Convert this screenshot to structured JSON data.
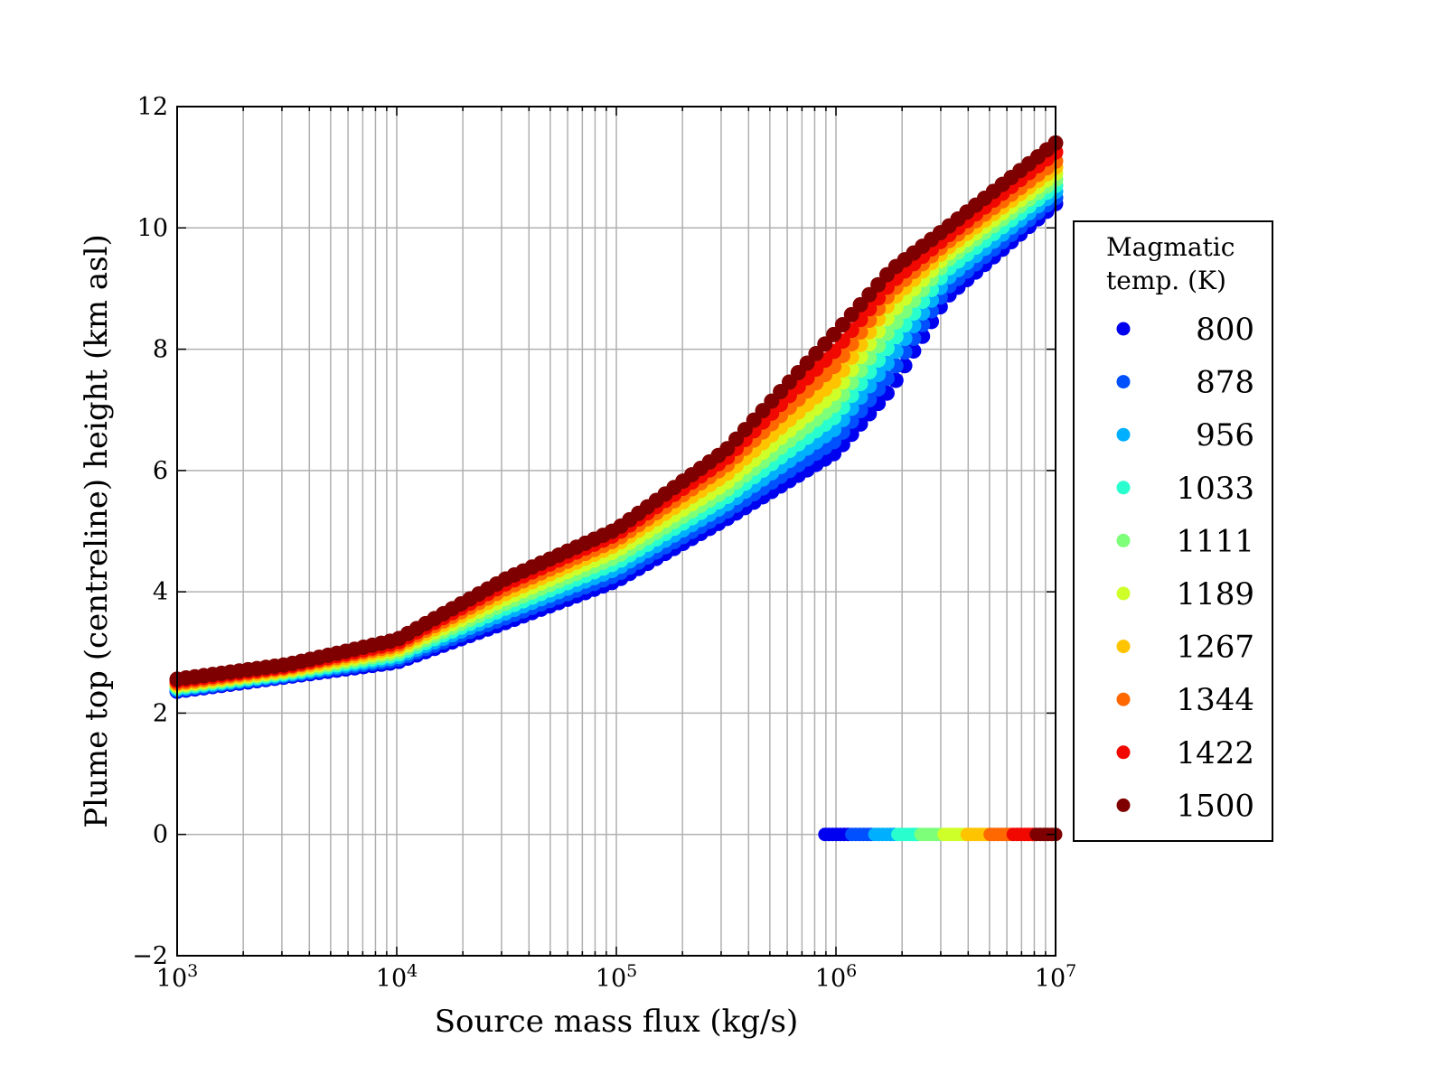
{
  "chart_data": {
    "type": "scatter",
    "title": "",
    "xlabel": "Source mass flux (kg/s)",
    "ylabel": "Plume top (centreline) height (km asl)",
    "xscale": "log",
    "xlim": [
      1000,
      10000000
    ],
    "ylim": [
      -2,
      12
    ],
    "grid": true,
    "x_ticks": [
      {
        "base": "10",
        "exp": "3"
      },
      {
        "base": "10",
        "exp": "4"
      },
      {
        "base": "10",
        "exp": "5"
      },
      {
        "base": "10",
        "exp": "6"
      },
      {
        "base": "10",
        "exp": "7"
      }
    ],
    "y_ticks": [
      "−2",
      "0",
      "2",
      "4",
      "6",
      "8",
      "10",
      "12"
    ],
    "legend": {
      "title_line1": "Magmatic",
      "title_line2": "temp. (K)",
      "placement": "outside-right"
    },
    "control_log10_x": [
      3,
      3.5,
      4,
      4.5,
      5,
      5.5,
      6,
      6.25,
      6.5,
      7
    ],
    "series": [
      {
        "name": "800",
        "color": "#0000f0",
        "heights_km": [
          2.36,
          2.6,
          2.84,
          3.5,
          4.18,
          5.2,
          6.3,
          7.35,
          8.85,
          10.4
        ]
      },
      {
        "name": "878",
        "color": "#0050ff",
        "heights_km": [
          2.38,
          2.62,
          2.88,
          3.58,
          4.28,
          5.32,
          6.5,
          7.6,
          9.0,
          10.5
        ]
      },
      {
        "name": "956",
        "color": "#00b0ff",
        "heights_km": [
          2.4,
          2.64,
          2.92,
          3.66,
          4.38,
          5.44,
          6.7,
          7.85,
          9.15,
          10.6
        ]
      },
      {
        "name": "1033",
        "color": "#29ffce",
        "heights_km": [
          2.42,
          2.66,
          2.96,
          3.74,
          4.48,
          5.56,
          6.9,
          8.1,
          9.3,
          10.7
        ]
      },
      {
        "name": "1111",
        "color": "#7dff7a",
        "heights_km": [
          2.44,
          2.68,
          3.0,
          3.82,
          4.58,
          5.68,
          7.1,
          8.35,
          9.45,
          10.8
        ]
      },
      {
        "name": "1189",
        "color": "#ceff29",
        "heights_km": [
          2.46,
          2.7,
          3.04,
          3.9,
          4.68,
          5.8,
          7.3,
          8.6,
          9.55,
          10.9
        ]
      },
      {
        "name": "1267",
        "color": "#ffc400",
        "heights_km": [
          2.48,
          2.72,
          3.08,
          3.98,
          4.78,
          5.94,
          7.5,
          8.8,
          9.65,
          11.0
        ]
      },
      {
        "name": "1344",
        "color": "#ff6800",
        "heights_km": [
          2.5,
          2.75,
          3.12,
          4.06,
          4.86,
          6.08,
          7.75,
          8.95,
          9.75,
          11.1
        ]
      },
      {
        "name": "1422",
        "color": "#f10800",
        "heights_km": [
          2.53,
          2.77,
          3.16,
          4.14,
          4.95,
          6.2,
          8.0,
          9.1,
          9.85,
          11.25
        ]
      },
      {
        "name": "1500",
        "color": "#7f0000",
        "heights_km": [
          2.56,
          2.8,
          3.21,
          4.22,
          5.03,
          6.34,
          8.28,
          9.3,
          9.99,
          11.4
        ]
      }
    ],
    "zero_height_points": {
      "log10_x_range": [
        5.95,
        7.0
      ],
      "height_km": 0
    }
  }
}
